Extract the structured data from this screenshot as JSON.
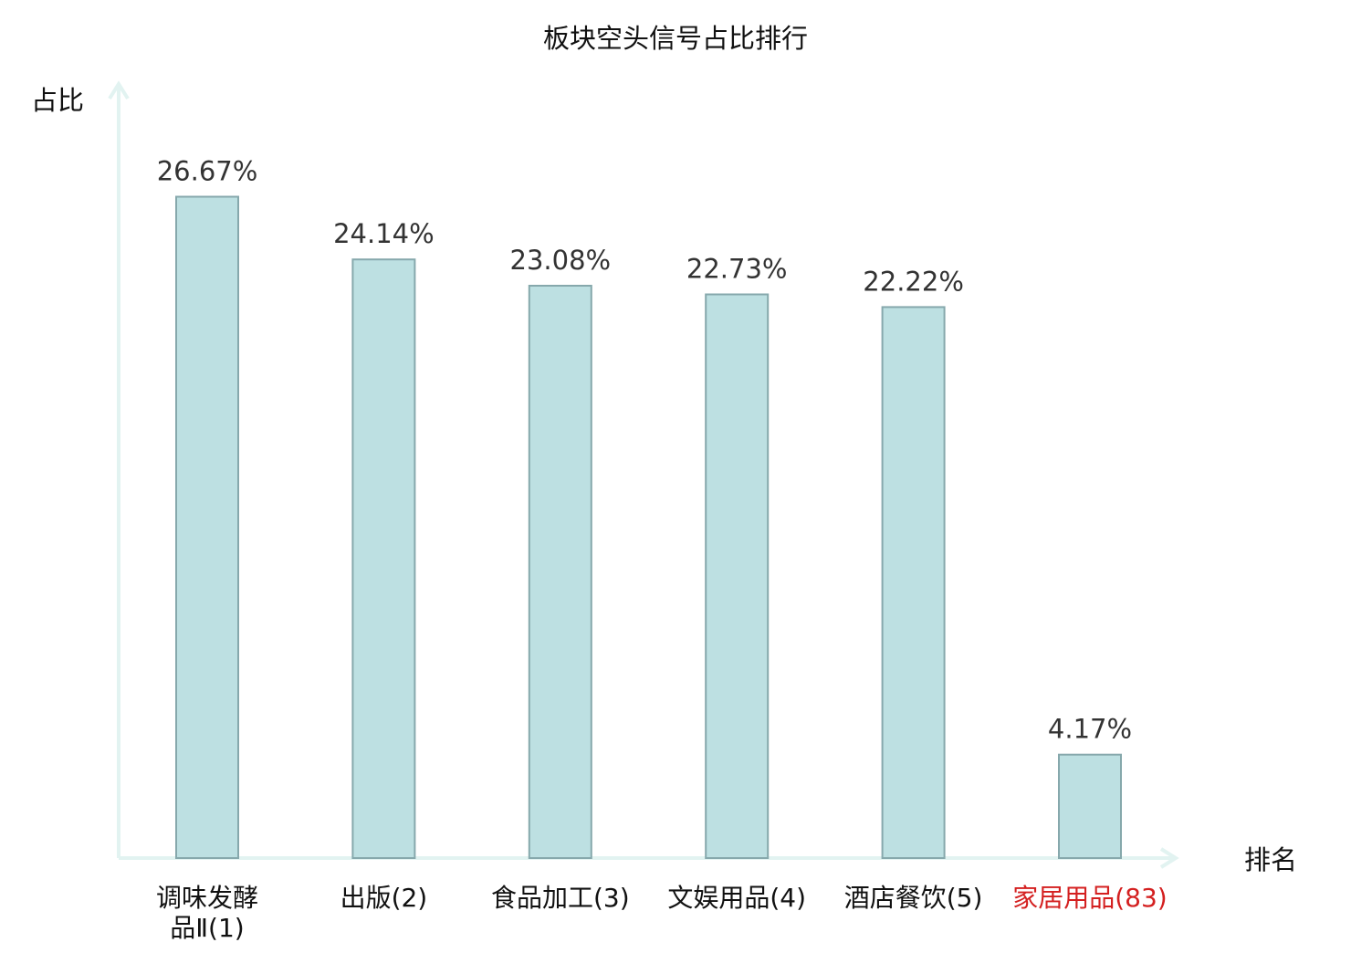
{
  "chart_data": {
    "type": "bar",
    "title": "板块空头信号占比排行",
    "ylabel": "占比",
    "xlabel": "排名",
    "categories": [
      {
        "lines": [
          "调味发酵",
          "品Ⅱ(1)"
        ],
        "highlight": false
      },
      {
        "lines": [
          "出版(2)"
        ],
        "highlight": false
      },
      {
        "lines": [
          "食品加工(3)"
        ],
        "highlight": false
      },
      {
        "lines": [
          "文娱用品(4)"
        ],
        "highlight": false
      },
      {
        "lines": [
          "酒店餐饮(5)"
        ],
        "highlight": false
      },
      {
        "lines": [
          "家居用品(83)"
        ],
        "highlight": true
      }
    ],
    "values": [
      26.67,
      24.14,
      23.08,
      22.73,
      22.22,
      4.17
    ],
    "value_labels": [
      "26.67%",
      "24.14%",
      "23.08%",
      "22.73%",
      "22.22%",
      "4.17%"
    ],
    "ylim": [
      0,
      30
    ],
    "grid": false,
    "legend": "none",
    "colors": {
      "bar_fill": "#bde0e2",
      "bar_stroke": "#86a8ac",
      "axis": "#e2f3f1",
      "label_text": "#333333",
      "category_text": "#111111",
      "highlight_text": "#d42020",
      "title_text": "#111111"
    }
  }
}
